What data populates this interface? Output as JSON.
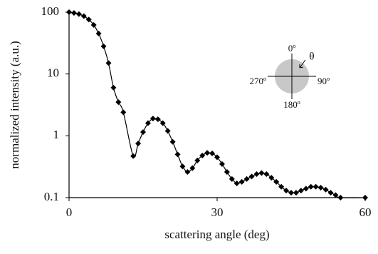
{
  "chart_data": {
    "type": "line",
    "xlabel": "scattering angle (deg)",
    "ylabel": "normalized intensity (a.u.)",
    "x": [
      0,
      1,
      2,
      3,
      4,
      5,
      6,
      7,
      8,
      9,
      10,
      11,
      13,
      14,
      15,
      16,
      17,
      18,
      19,
      20,
      21,
      22,
      23,
      24,
      25,
      26,
      27,
      28,
      29,
      30,
      31,
      32,
      33,
      34,
      35,
      36,
      37,
      38,
      39,
      40,
      41,
      42,
      43,
      44,
      45,
      46,
      47,
      48,
      49,
      50,
      51,
      52,
      53,
      54,
      55,
      60
    ],
    "series": [
      {
        "color": "#000000",
        "marker": "diamond",
        "values": [
          100,
          97,
          93,
          86,
          76,
          62,
          45,
          28,
          15,
          6,
          3.5,
          2.4,
          0.47,
          0.75,
          1.15,
          1.6,
          1.9,
          1.85,
          1.6,
          1.2,
          0.8,
          0.5,
          0.32,
          0.26,
          0.3,
          0.4,
          0.48,
          0.53,
          0.52,
          0.45,
          0.35,
          0.26,
          0.2,
          0.17,
          0.18,
          0.2,
          0.22,
          0.24,
          0.25,
          0.24,
          0.21,
          0.18,
          0.15,
          0.13,
          0.12,
          0.12,
          0.13,
          0.14,
          0.15,
          0.15,
          0.145,
          0.135,
          0.12,
          0.11,
          0.1,
          0.1
        ]
      }
    ],
    "xlim": [
      0,
      60
    ],
    "xticks": [
      0,
      30,
      60
    ],
    "ylim": [
      0.1,
      100
    ],
    "yticks": [
      0.1,
      1,
      10,
      100
    ],
    "ylog": true,
    "grid": false,
    "inset": {
      "top": "0º",
      "right": "90º",
      "bottom": "180º",
      "left": "270º",
      "angle": "θ"
    }
  }
}
